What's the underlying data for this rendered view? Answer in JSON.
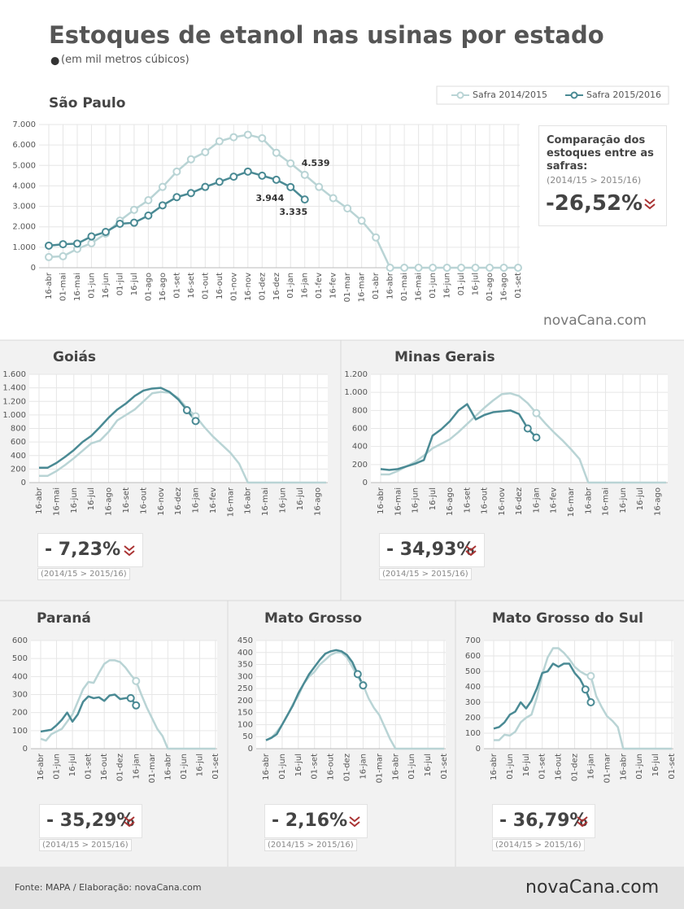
{
  "title": "Estoques de etanol nas usinas por estado",
  "subtitle": "(em mil metros cúbicos)",
  "source": "Fonte: MAPA / Elaboração:  novaCana.com",
  "logo": "novaCana.com",
  "chart_data": [
    {
      "type": "line",
      "title": "São Paulo",
      "grid": true,
      "markers": "all",
      "legend": "top-right",
      "comparison": {
        "label": "Comparação dos estoques entre as safras:",
        "period": "(2014/15 > 2015/16)",
        "change": "-26,52%"
      },
      "categories": [
        "16-abr",
        "01-mai",
        "16-mai",
        "01-jun",
        "16-jun",
        "01-jul",
        "16-jul",
        "01-ago",
        "16-ago",
        "01-set",
        "16-set",
        "01-out",
        "16-out",
        "01-nov",
        "16-nov",
        "01-dez",
        "16-dez",
        "01-jan",
        "16-jan",
        "01-fev",
        "16-fev",
        "01-mar",
        "16-mar",
        "01-abr",
        "16-abr",
        "01-mai",
        "16-mai",
        "01-jun",
        "16-jun",
        "01-jul",
        "16-jul",
        "01-ago",
        "16-ago",
        "01-set"
      ],
      "ylim": [
        0,
        7000
      ],
      "yticks": [
        0,
        {
          "value": 1000,
          "label": "1.000"
        },
        {
          "value": 2000,
          "label": "2.000"
        },
        {
          "value": 3000,
          "label": "3.000"
        },
        {
          "value": 4000,
          "label": "4.000"
        },
        {
          "value": 5000,
          "label": "5.000"
        },
        {
          "value": 6000,
          "label": "6.000"
        },
        {
          "value": 7000,
          "label": "7.000"
        }
      ],
      "series": [
        {
          "name": "Safra 2014/2015",
          "color": "#b9d4d5",
          "values": [
            520,
            560,
            920,
            1200,
            1670,
            2300,
            2830,
            3300,
            3950,
            4700,
            5300,
            5650,
            6180,
            6380,
            6500,
            6330,
            5620,
            5100,
            4539,
            3950,
            3400,
            2900,
            2300,
            1480,
            0,
            0,
            0,
            0,
            0,
            0,
            0,
            0,
            0,
            0
          ],
          "value_labels": [
            null,
            null,
            null,
            null,
            null,
            null,
            null,
            null,
            null,
            null,
            null,
            null,
            null,
            null,
            null,
            null,
            null,
            null,
            "4.539",
            null,
            null,
            null,
            null,
            null,
            null,
            null,
            null,
            null,
            null,
            null,
            null,
            null,
            null,
            null
          ]
        },
        {
          "name": "Safra 2015/2016",
          "color": "#4a8a94",
          "values": [
            1080,
            1150,
            1180,
            1530,
            1750,
            2150,
            2200,
            2550,
            3050,
            3450,
            3650,
            3950,
            4200,
            4450,
            4700,
            4500,
            4300,
            3944,
            3335,
            null,
            null,
            null,
            null,
            null,
            null,
            null,
            null,
            null,
            null,
            null,
            null,
            null,
            null,
            null
          ],
          "value_labels": [
            null,
            null,
            null,
            null,
            null,
            null,
            null,
            null,
            null,
            null,
            null,
            null,
            null,
            null,
            null,
            null,
            null,
            "3.944",
            "3.335",
            null,
            null,
            null,
            null,
            null,
            null,
            null,
            null,
            null,
            null,
            null,
            null,
            null,
            null,
            null
          ]
        }
      ]
    },
    {
      "type": "line",
      "title": "Goiás",
      "grid": true,
      "markers": "end",
      "comparison": {
        "period": "(2014/15 > 2015/16)",
        "change": "- 7,23%"
      },
      "categories": [
        "16-abr",
        null,
        "16-mai",
        null,
        "16-jun",
        null,
        "16-jul",
        null,
        "16-ago",
        null,
        "16-set",
        null,
        "16-out",
        null,
        "16-nov",
        null,
        "16-dez",
        null,
        "16-jan",
        null,
        "16-fev",
        null,
        "16-mar",
        null,
        "16-abr",
        null,
        "16-mai",
        null,
        "16-jun",
        null,
        "16-jul",
        null,
        "16-ago",
        null
      ],
      "ylim": [
        0,
        1600
      ],
      "yticks": [
        0,
        200,
        400,
        600,
        800,
        {
          "value": 1000,
          "label": "1.000"
        },
        {
          "value": 1200,
          "label": "1.200"
        },
        {
          "value": 1400,
          "label": "1.400"
        },
        {
          "value": 1600,
          "label": "1.600"
        }
      ],
      "series": [
        {
          "color": "#b9d4d5",
          "values": [
            100,
            100,
            170,
            260,
            360,
            470,
            580,
            620,
            750,
            920,
            1000,
            1080,
            1200,
            1320,
            1340,
            1330,
            1250,
            1100,
            980,
            820,
            680,
            560,
            440,
            280,
            0,
            0,
            0,
            0,
            0,
            0,
            0,
            0,
            0,
            0
          ]
        },
        {
          "color": "#4a8a94",
          "values": [
            220,
            220,
            290,
            380,
            480,
            600,
            690,
            820,
            960,
            1080,
            1170,
            1280,
            1360,
            1390,
            1400,
            1340,
            1230,
            1070,
            910,
            null,
            null,
            null,
            null,
            null,
            null,
            null,
            null,
            null,
            null,
            null,
            null,
            null,
            null,
            null
          ]
        }
      ]
    },
    {
      "type": "line",
      "title": "Minas Gerais",
      "grid": true,
      "markers": "end",
      "comparison": {
        "period": "(2014/15 > 2015/16)",
        "change": "- 34,93%"
      },
      "categories": [
        "16-abr",
        null,
        "16-mai",
        null,
        "16-jun",
        null,
        "16-jul",
        null,
        "16-ago",
        null,
        "16-set",
        null,
        "16-out",
        null,
        "16-nov",
        null,
        "16-dez",
        null,
        "16-jan",
        null,
        "16-fev",
        null,
        "16-mar",
        null,
        "16-abr",
        null,
        "16-mai",
        null,
        "16-jun",
        null,
        "16-jul",
        null,
        "16-ago",
        null
      ],
      "ylim": [
        0,
        1200
      ],
      "yticks": [
        0,
        200,
        400,
        600,
        800,
        {
          "value": 1000,
          "label": "1.000"
        },
        {
          "value": 1200,
          "label": "1.200"
        }
      ],
      "series": [
        {
          "color": "#b9d4d5",
          "values": [
            90,
            90,
            130,
            180,
            230,
            300,
            380,
            430,
            480,
            560,
            650,
            740,
            830,
            910,
            980,
            990,
            960,
            880,
            770,
            660,
            560,
            470,
            370,
            260,
            0,
            0,
            0,
            0,
            0,
            0,
            0,
            0,
            0,
            0
          ]
        },
        {
          "color": "#4a8a94",
          "values": [
            150,
            140,
            150,
            180,
            210,
            250,
            520,
            590,
            680,
            800,
            870,
            700,
            750,
            780,
            790,
            800,
            760,
            600,
            500,
            null,
            null,
            null,
            null,
            null,
            null,
            null,
            null,
            null,
            null,
            null,
            null,
            null,
            null,
            null
          ]
        }
      ]
    },
    {
      "type": "line",
      "title": "Paraná",
      "grid": true,
      "markers": "end",
      "comparison": {
        "period": "(2014/15 > 2015/16)",
        "change": "- 35,29%"
      },
      "categories": [
        "16-abr",
        null,
        null,
        "01-jun",
        null,
        null,
        "16-jul",
        null,
        null,
        "01-set",
        null,
        null,
        "16-out",
        null,
        null,
        "01-dez",
        null,
        null,
        "16-jan",
        null,
        null,
        "01-mar",
        null,
        null,
        "16-abr",
        null,
        null,
        "01-jun",
        null,
        null,
        "16-jul",
        null,
        null,
        "01-set"
      ],
      "ylim": [
        0,
        600
      ],
      "yticks": [
        0,
        100,
        200,
        300,
        400,
        500,
        600
      ],
      "series": [
        {
          "color": "#b9d4d5",
          "values": [
            55,
            45,
            80,
            95,
            110,
            150,
            190,
            260,
            330,
            370,
            365,
            420,
            470,
            490,
            490,
            480,
            450,
            410,
            375,
            300,
            230,
            170,
            110,
            70,
            0,
            0,
            0,
            0,
            0,
            0,
            0,
            0,
            0,
            0
          ]
        },
        {
          "color": "#4a8a94",
          "values": [
            95,
            100,
            105,
            130,
            160,
            200,
            150,
            190,
            260,
            290,
            280,
            285,
            265,
            295,
            300,
            275,
            280,
            280,
            240,
            null,
            null,
            null,
            null,
            null,
            null,
            null,
            null,
            null,
            null,
            null,
            null,
            null,
            null,
            null
          ]
        }
      ]
    },
    {
      "type": "line",
      "title": "Mato Grosso",
      "grid": true,
      "markers": "end",
      "comparison": {
        "period": "(2014/15 > 2015/16)",
        "change": "- 2,16%"
      },
      "categories": [
        "16-abr",
        null,
        null,
        "01-jun",
        null,
        null,
        "16-jul",
        null,
        null,
        "01-set",
        null,
        null,
        "16-out",
        null,
        null,
        "01-dez",
        null,
        null,
        "16-jan",
        null,
        null,
        "01-mar",
        null,
        null,
        "16-abr",
        null,
        null,
        "01-jun",
        null,
        null,
        "16-jul",
        null,
        null,
        "01-set"
      ],
      "ylim": [
        0,
        450
      ],
      "yticks": [
        0,
        50,
        100,
        150,
        200,
        250,
        300,
        350,
        400,
        450
      ],
      "series": [
        {
          "color": "#b9d4d5",
          "values": [
            35,
            45,
            70,
            100,
            140,
            185,
            220,
            270,
            300,
            320,
            350,
            370,
            390,
            400,
            400,
            380,
            340,
            300,
            265,
            210,
            170,
            140,
            90,
            40,
            0,
            0,
            0,
            0,
            0,
            0,
            0,
            0,
            0,
            0
          ]
        },
        {
          "color": "#4a8a94",
          "values": [
            35,
            45,
            60,
            100,
            140,
            180,
            230,
            270,
            310,
            340,
            370,
            395,
            405,
            410,
            405,
            390,
            360,
            310,
            263,
            null,
            null,
            null,
            null,
            null,
            null,
            null,
            null,
            null,
            null,
            null,
            null,
            null,
            null,
            null
          ]
        }
      ]
    },
    {
      "type": "line",
      "title": "Mato Grosso do Sul",
      "grid": true,
      "markers": "end",
      "comparison": {
        "period": "(2014/15 > 2015/16)",
        "change": "- 36,79%"
      },
      "categories": [
        "16-abr",
        null,
        null,
        "01-jun",
        null,
        null,
        "16-jul",
        null,
        null,
        "01-set",
        null,
        null,
        "16-out",
        null,
        null,
        "01-dez",
        null,
        null,
        "16-jan",
        null,
        null,
        "01-mar",
        null,
        null,
        "16-abr",
        null,
        null,
        "01-jun",
        null,
        null,
        "16-jul",
        null,
        null,
        "01-set"
      ],
      "ylim": [
        0,
        700
      ],
      "yticks": [
        0,
        100,
        200,
        300,
        400,
        500,
        600,
        700
      ],
      "series": [
        {
          "color": "#b9d4d5",
          "values": [
            55,
            55,
            90,
            85,
            110,
            170,
            200,
            220,
            330,
            480,
            590,
            650,
            650,
            620,
            580,
            530,
            500,
            480,
            470,
            340,
            270,
            210,
            180,
            140,
            0,
            0,
            0,
            0,
            0,
            0,
            0,
            0,
            0,
            0
          ]
        },
        {
          "color": "#4a8a94",
          "values": [
            130,
            140,
            170,
            220,
            240,
            300,
            260,
            310,
            390,
            490,
            500,
            550,
            530,
            550,
            550,
            490,
            450,
            383,
            300,
            null,
            null,
            null,
            null,
            null,
            null,
            null,
            null,
            null,
            null,
            null,
            null,
            null,
            null,
            null
          ]
        }
      ]
    }
  ]
}
